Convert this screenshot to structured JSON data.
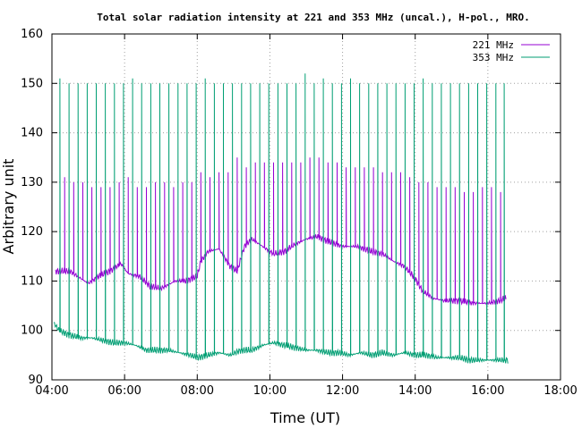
{
  "chart_data": {
    "type": "line",
    "title": "Total solar radiation intensity at 221 and 353 MHz (uncal.), H-pol., MRO.",
    "xlabel": "Time (UT)",
    "ylabel": "Arbitrary unit",
    "xlim": [
      4,
      18
    ],
    "ylim": [
      90,
      160
    ],
    "xticks": [
      4,
      6,
      8,
      10,
      12,
      14,
      16,
      18
    ],
    "xtick_labels": [
      "04:00",
      "06:00",
      "08:00",
      "10:00",
      "12:00",
      "14:00",
      "16:00",
      "18:00"
    ],
    "yticks": [
      90,
      100,
      110,
      120,
      130,
      140,
      150,
      160
    ],
    "ytick_labels": [
      "90",
      "100",
      "110",
      "120",
      "130",
      "140",
      "150",
      "160"
    ],
    "grid": true,
    "legend_position": "top-right",
    "series": [
      {
        "name": "221 MHz",
        "color": "#9400d3",
        "baseline": [
          [
            4.1,
            112
          ],
          [
            4.5,
            112
          ],
          [
            4.8,
            110.5
          ],
          [
            5.0,
            109.5
          ],
          [
            5.3,
            111
          ],
          [
            5.6,
            112
          ],
          [
            5.9,
            113.5
          ],
          [
            6.1,
            111.5
          ],
          [
            6.4,
            111
          ],
          [
            6.7,
            109
          ],
          [
            7.0,
            108.5
          ],
          [
            7.4,
            110
          ],
          [
            7.7,
            110
          ],
          [
            8.0,
            111
          ],
          [
            8.1,
            114
          ],
          [
            8.3,
            116
          ],
          [
            8.6,
            116.5
          ],
          [
            8.9,
            113
          ],
          [
            9.1,
            112
          ],
          [
            9.3,
            117
          ],
          [
            9.5,
            118.5
          ],
          [
            9.8,
            117
          ],
          [
            10.1,
            115.5
          ],
          [
            10.4,
            116
          ],
          [
            10.7,
            117.5
          ],
          [
            11.0,
            118.5
          ],
          [
            11.3,
            119
          ],
          [
            11.6,
            118
          ],
          [
            12.0,
            117
          ],
          [
            12.4,
            117
          ],
          [
            12.8,
            116
          ],
          [
            13.1,
            115.5
          ],
          [
            13.4,
            114
          ],
          [
            13.7,
            113
          ],
          [
            14.0,
            110.5
          ],
          [
            14.2,
            108
          ],
          [
            14.5,
            106.5
          ],
          [
            14.8,
            106
          ],
          [
            15.2,
            106
          ],
          [
            15.6,
            105.5
          ],
          [
            16.0,
            105.5
          ],
          [
            16.3,
            106
          ],
          [
            16.5,
            106.5
          ]
        ],
        "spikes": [
          [
            4.35,
            131
          ],
          [
            4.6,
            130
          ],
          [
            4.85,
            130
          ],
          [
            5.1,
            129
          ],
          [
            5.35,
            129
          ],
          [
            5.6,
            129
          ],
          [
            5.85,
            130
          ],
          [
            6.1,
            131
          ],
          [
            6.35,
            129
          ],
          [
            6.6,
            129
          ],
          [
            6.85,
            130
          ],
          [
            7.1,
            130
          ],
          [
            7.35,
            129
          ],
          [
            7.6,
            130
          ],
          [
            7.85,
            130
          ],
          [
            8.1,
            132
          ],
          [
            8.35,
            131
          ],
          [
            8.6,
            132
          ],
          [
            8.85,
            132
          ],
          [
            9.1,
            135
          ],
          [
            9.35,
            133
          ],
          [
            9.6,
            134
          ],
          [
            9.85,
            134
          ],
          [
            10.1,
            134
          ],
          [
            10.35,
            134
          ],
          [
            10.6,
            134
          ],
          [
            10.85,
            134
          ],
          [
            11.1,
            135
          ],
          [
            11.35,
            135
          ],
          [
            11.6,
            134
          ],
          [
            11.85,
            134
          ],
          [
            12.1,
            133
          ],
          [
            12.35,
            133
          ],
          [
            12.6,
            133
          ],
          [
            12.85,
            133
          ],
          [
            13.1,
            132
          ],
          [
            13.35,
            132
          ],
          [
            13.6,
            132
          ],
          [
            13.85,
            131
          ],
          [
            14.1,
            130
          ],
          [
            14.35,
            130
          ],
          [
            14.6,
            129
          ],
          [
            14.85,
            129
          ],
          [
            15.1,
            129
          ],
          [
            15.35,
            128
          ],
          [
            15.6,
            128
          ],
          [
            15.85,
            129
          ],
          [
            16.1,
            129
          ],
          [
            16.35,
            128
          ]
        ]
      },
      {
        "name": "353 MHz",
        "color": "#009e73",
        "baseline": [
          [
            4.05,
            101.5
          ],
          [
            4.2,
            100
          ],
          [
            4.5,
            99
          ],
          [
            4.8,
            98.5
          ],
          [
            5.1,
            98.5
          ],
          [
            5.4,
            98
          ],
          [
            5.7,
            97.5
          ],
          [
            6.0,
            97.5
          ],
          [
            6.3,
            97
          ],
          [
            6.6,
            96
          ],
          [
            6.9,
            96
          ],
          [
            7.2,
            96
          ],
          [
            7.5,
            95.5
          ],
          [
            7.8,
            95
          ],
          [
            8.0,
            94.5
          ],
          [
            8.3,
            95
          ],
          [
            8.6,
            95.5
          ],
          [
            8.9,
            95
          ],
          [
            9.2,
            96
          ],
          [
            9.5,
            96
          ],
          [
            9.8,
            97
          ],
          [
            10.1,
            97.5
          ],
          [
            10.4,
            97
          ],
          [
            10.7,
            96.5
          ],
          [
            11.0,
            96
          ],
          [
            11.3,
            96
          ],
          [
            11.6,
            95.5
          ],
          [
            11.9,
            95.5
          ],
          [
            12.2,
            95
          ],
          [
            12.5,
            95.5
          ],
          [
            12.8,
            95
          ],
          [
            13.1,
            95.5
          ],
          [
            13.4,
            95
          ],
          [
            13.7,
            95.5
          ],
          [
            14.0,
            95
          ],
          [
            14.3,
            95
          ],
          [
            14.6,
            94.5
          ],
          [
            14.9,
            94.5
          ],
          [
            15.2,
            94.5
          ],
          [
            15.5,
            94
          ],
          [
            15.8,
            94
          ],
          [
            16.1,
            94
          ],
          [
            16.4,
            94
          ],
          [
            16.55,
            94
          ]
        ],
        "spikes": [
          [
            4.22,
            151
          ],
          [
            4.47,
            150
          ],
          [
            4.72,
            150
          ],
          [
            4.97,
            150
          ],
          [
            5.22,
            150
          ],
          [
            5.47,
            150
          ],
          [
            5.72,
            150
          ],
          [
            5.97,
            150
          ],
          [
            6.22,
            151
          ],
          [
            6.47,
            150
          ],
          [
            6.72,
            150
          ],
          [
            6.97,
            150
          ],
          [
            7.22,
            150
          ],
          [
            7.47,
            150
          ],
          [
            7.72,
            150
          ],
          [
            7.97,
            150
          ],
          [
            8.22,
            151
          ],
          [
            8.47,
            150
          ],
          [
            8.72,
            150
          ],
          [
            8.97,
            150
          ],
          [
            9.22,
            150
          ],
          [
            9.47,
            150
          ],
          [
            9.72,
            150
          ],
          [
            9.97,
            150
          ],
          [
            10.22,
            150
          ],
          [
            10.47,
            150
          ],
          [
            10.72,
            150
          ],
          [
            10.97,
            152
          ],
          [
            11.22,
            150
          ],
          [
            11.47,
            151
          ],
          [
            11.72,
            150
          ],
          [
            11.97,
            150
          ],
          [
            12.22,
            151
          ],
          [
            12.47,
            150
          ],
          [
            12.72,
            150
          ],
          [
            12.97,
            150
          ],
          [
            13.22,
            150
          ],
          [
            13.47,
            150
          ],
          [
            13.72,
            150
          ],
          [
            13.97,
            150
          ],
          [
            14.22,
            151
          ],
          [
            14.47,
            150
          ],
          [
            14.72,
            150
          ],
          [
            14.97,
            150
          ],
          [
            15.22,
            150
          ],
          [
            15.47,
            150
          ],
          [
            15.72,
            150
          ],
          [
            15.97,
            150
          ],
          [
            16.22,
            150
          ],
          [
            16.45,
            150
          ]
        ]
      }
    ]
  }
}
